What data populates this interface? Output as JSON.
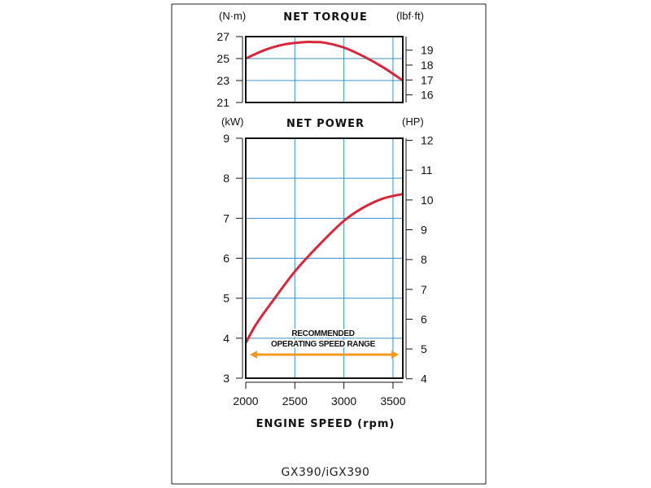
{
  "chart_data": [
    {
      "type": "line",
      "title": "NET TORQUE",
      "ylabel": "(N·m)",
      "y2label": "(lbf·ft)",
      "xlim": [
        2000,
        3600
      ],
      "ylim": [
        21,
        27
      ],
      "y2lim": [
        15.49,
        19.91
      ],
      "yticks": [
        21,
        23,
        25,
        27
      ],
      "y2ticks": [
        16,
        17,
        18,
        19
      ],
      "xgrid": [
        2000,
        2500,
        3000,
        3500
      ],
      "grid": true,
      "series": [
        {
          "color": "#d9263a",
          "x": [
            2000,
            2200,
            2400,
            2600,
            2700,
            2800,
            3000,
            3200,
            3400,
            3600
          ],
          "y": [
            25.0,
            25.8,
            26.3,
            26.5,
            26.5,
            26.45,
            26.0,
            25.2,
            24.2,
            23.0
          ]
        }
      ]
    },
    {
      "type": "line",
      "title": "NET POWER",
      "ylabel": "(kW)",
      "y2label": "(HP)",
      "xlabel": "ENGINE SPEED (rpm)",
      "xlim": [
        2000,
        3600
      ],
      "ylim": [
        3,
        9
      ],
      "y2lim": [
        4.02,
        12.07
      ],
      "yticks": [
        3,
        4,
        5,
        6,
        7,
        8,
        9
      ],
      "y2ticks": [
        4,
        5,
        6,
        7,
        8,
        9,
        10,
        11,
        12
      ],
      "xticks": [
        2000,
        2500,
        3000,
        3500
      ],
      "grid": true,
      "series": [
        {
          "color": "#d9263a",
          "x": [
            2000,
            2100,
            2250,
            2500,
            2750,
            3000,
            3200,
            3400,
            3600
          ],
          "y": [
            5.2,
            5.8,
            6.5,
            7.6,
            8.5,
            9.3,
            9.75,
            10.05,
            10.2
          ],
          "note": "kW"
        }
      ],
      "annotation": {
        "text_line1": "RECOMMENDED",
        "text_line2": "OPERATING SPEED RANGE",
        "range": [
          2000,
          3600
        ],
        "color": "#f29a1e"
      }
    }
  ],
  "model_label": "GX390/iGX390"
}
